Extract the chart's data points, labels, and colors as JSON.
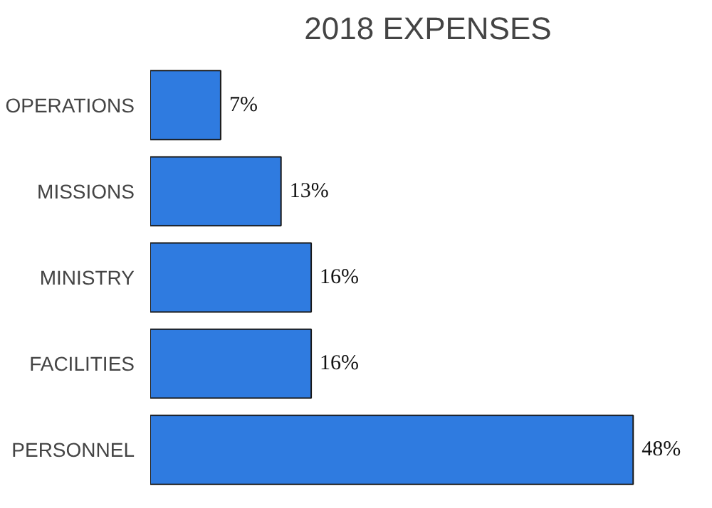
{
  "chart_data": {
    "type": "bar",
    "orientation": "horizontal",
    "title": "2018 EXPENSES",
    "categories": [
      "OPERATIONS",
      "MISSIONS",
      "MINISTRY",
      "FACILITIES",
      "PERSONNEL"
    ],
    "values": [
      7,
      13,
      16,
      16,
      48
    ],
    "color": "#2f7be0",
    "value_labels": [
      "7%",
      "13%",
      "16%",
      "16%",
      "48%"
    ]
  }
}
